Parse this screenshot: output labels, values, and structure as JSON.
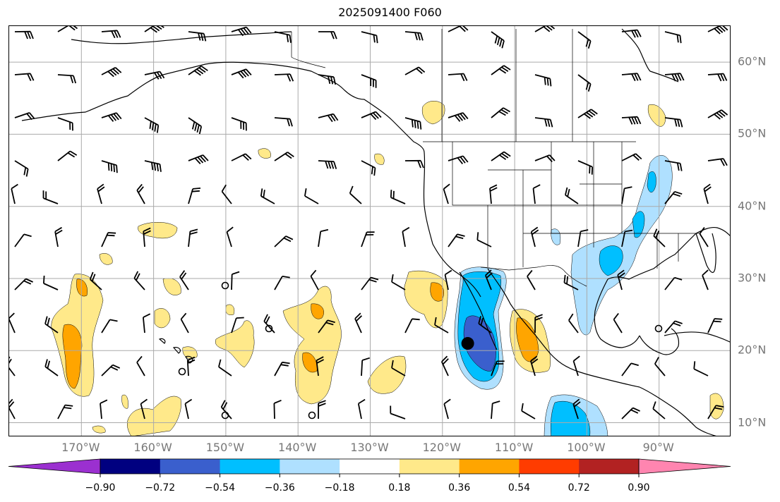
{
  "title": "2025091400 F060",
  "map": {
    "projection": "PlateCarree",
    "lon_range": [
      -180,
      -80
    ],
    "lat_range": [
      8,
      65
    ],
    "lon_ticks": [
      {
        "value": -170,
        "label": "170°W"
      },
      {
        "value": -160,
        "label": "160°W"
      },
      {
        "value": -150,
        "label": "150°W"
      },
      {
        "value": -140,
        "label": "140°W"
      },
      {
        "value": -130,
        "label": "130°W"
      },
      {
        "value": -120,
        "label": "120°W"
      },
      {
        "value": -110,
        "label": "110°W"
      },
      {
        "value": -100,
        "label": "100°W"
      },
      {
        "value": -90,
        "label": "90°W"
      }
    ],
    "lat_ticks": [
      {
        "value": 60,
        "label": "60°N"
      },
      {
        "value": 50,
        "label": "50°N"
      },
      {
        "value": 40,
        "label": "40°N"
      },
      {
        "value": 30,
        "label": "30°N"
      },
      {
        "value": 20,
        "label": "20°N"
      },
      {
        "value": 10,
        "label": "10°N"
      }
    ],
    "gridlines": true,
    "marker": {
      "lon": -116.5,
      "lat": 21,
      "color": "#000000"
    }
  },
  "colorbar": {
    "orientation": "horizontal",
    "extend": "both",
    "levels": [
      -0.9,
      -0.72,
      -0.54,
      -0.36,
      -0.18,
      0.18,
      0.36,
      0.54,
      0.72,
      0.9
    ],
    "tick_labels": [
      "−0.90",
      "−0.72",
      "−0.54",
      "−0.36",
      "−0.18",
      "0.18",
      "0.36",
      "0.54",
      "0.72",
      "0.90"
    ],
    "colors": [
      "#9b30d0",
      "#000080",
      "#3a5fcd",
      "#00bfff",
      "#afe0ff",
      "#ffffff",
      "#ffe98a",
      "#ffa500",
      "#ff3c00",
      "#b22222",
      "#ff85b0"
    ]
  },
  "colors": {
    "neg1": "#afe0ff",
    "neg2": "#00bfff",
    "neg3": "#3a5fcd",
    "pos1": "#ffe98a",
    "pos2": "#ffa500",
    "grid": "#aaaaaa",
    "tick_label": "#777777"
  }
}
